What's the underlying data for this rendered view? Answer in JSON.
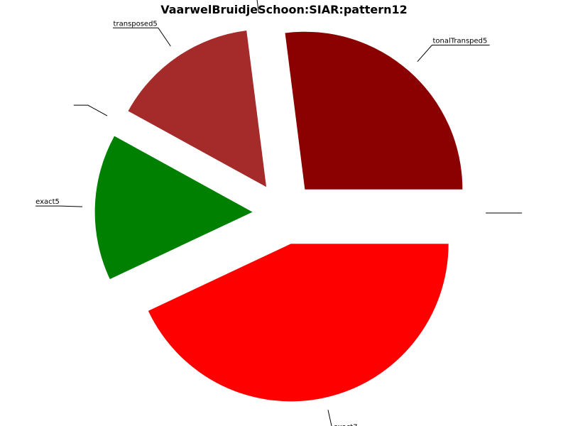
{
  "chart_data": {
    "type": "pie",
    "title": "VaarwelBruidjeSchoon:SIAR:pattern12",
    "slices": [
      {
        "label": "tonalTransped5",
        "value": 27,
        "color": "#8b0000"
      },
      {
        "label": "",
        "value": 0,
        "color": "#ffffff"
      },
      {
        "label": "transposed5",
        "value": 15,
        "color": "#a52a2a"
      },
      {
        "label": "",
        "value": 0,
        "color": "#ffffff"
      },
      {
        "label": "exact5",
        "value": 15,
        "color": "#008000"
      },
      {
        "label": "exact7",
        "value": 43,
        "color": "#ff0000"
      },
      {
        "label": "",
        "value": 0,
        "color": "#ffffff"
      }
    ],
    "legend": "none"
  }
}
